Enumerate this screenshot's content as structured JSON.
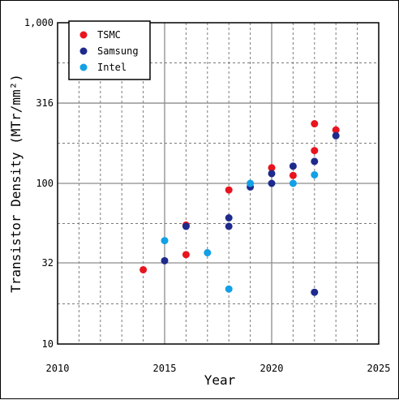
{
  "chart_data": {
    "type": "scatter",
    "xlabel": "Year",
    "ylabel": "Transistor Density (MTr/mm²)",
    "xlim": [
      2010,
      2025
    ],
    "ylim": [
      10,
      1000
    ],
    "y_scale": "log",
    "x_ticks": [
      "2010",
      "2015",
      "2020",
      "2025"
    ],
    "y_ticks": [
      {
        "value": 10,
        "label": "10"
      },
      {
        "value": 32,
        "label": "32"
      },
      {
        "value": 100,
        "label": "100"
      },
      {
        "value": 316,
        "label": "316"
      },
      {
        "value": 1000,
        "label": "1,000"
      }
    ],
    "grid": true,
    "legend_position": "top-left",
    "series": [
      {
        "name": "TSMC",
        "color": "#e8141e",
        "points": [
          {
            "x": 2014,
            "y": 29
          },
          {
            "x": 2016,
            "y": 36
          },
          {
            "x": 2016,
            "y": 55
          },
          {
            "x": 2018,
            "y": 91
          },
          {
            "x": 2020,
            "y": 125
          },
          {
            "x": 2021,
            "y": 112
          },
          {
            "x": 2022,
            "y": 235
          },
          {
            "x": 2022,
            "y": 160
          },
          {
            "x": 2023,
            "y": 215
          }
        ]
      },
      {
        "name": "Samsung",
        "color": "#1e2a8c",
        "points": [
          {
            "x": 2015,
            "y": 33
          },
          {
            "x": 2016,
            "y": 54
          },
          {
            "x": 2018,
            "y": 61
          },
          {
            "x": 2018,
            "y": 54
          },
          {
            "x": 2019,
            "y": 95
          },
          {
            "x": 2020,
            "y": 115
          },
          {
            "x": 2020,
            "y": 100
          },
          {
            "x": 2021,
            "y": 128
          },
          {
            "x": 2022,
            "y": 137
          },
          {
            "x": 2022,
            "y": 21
          },
          {
            "x": 2023,
            "y": 198
          }
        ]
      },
      {
        "name": "Intel",
        "color": "#12a0e6",
        "points": [
          {
            "x": 2015,
            "y": 44
          },
          {
            "x": 2017,
            "y": 37
          },
          {
            "x": 2018,
            "y": 22
          },
          {
            "x": 2019,
            "y": 100
          },
          {
            "x": 2021,
            "y": 100
          },
          {
            "x": 2022,
            "y": 113
          }
        ]
      }
    ]
  }
}
